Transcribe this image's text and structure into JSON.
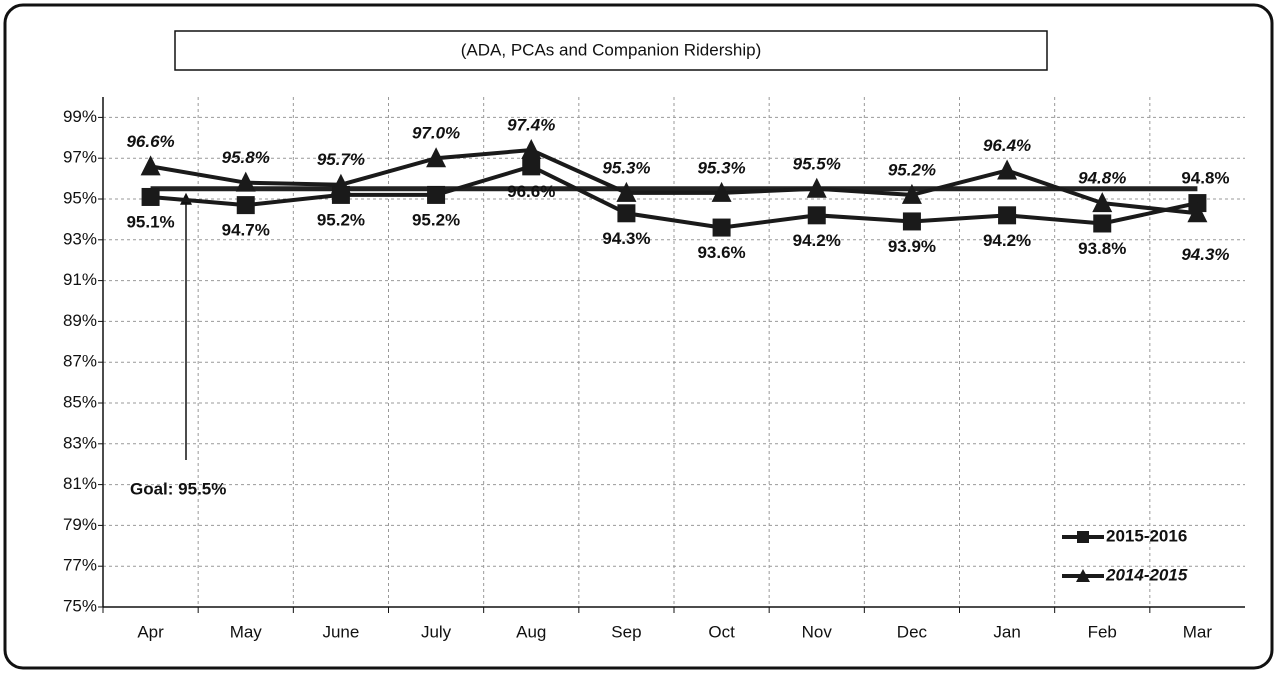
{
  "chart_data": {
    "type": "line",
    "title": "(ADA, PCAs and Companion Ridership)",
    "categories": [
      "Apr",
      "May",
      "June",
      "July",
      "Aug",
      "Sep",
      "Oct",
      "Nov",
      "Dec",
      "Jan",
      "Feb",
      "Mar"
    ],
    "series": [
      {
        "name": "2015-2016",
        "color": "#1a1a1a",
        "marker": "square",
        "values": [
          95.1,
          94.7,
          95.2,
          95.2,
          96.6,
          94.3,
          93.6,
          94.2,
          93.9,
          94.2,
          93.8,
          94.8
        ],
        "value_labels": [
          "95.1%",
          "94.7%",
          "95.2%",
          "95.2%",
          "96.6%",
          "94.3%",
          "93.6%",
          "94.2%",
          "93.9%",
          "94.2%",
          "93.8%",
          "94.8%"
        ]
      },
      {
        "name": "2014-2015",
        "color": "#1a1a1a",
        "marker": "triangle",
        "values": [
          96.6,
          95.8,
          95.7,
          97.0,
          97.4,
          95.3,
          95.3,
          95.5,
          95.2,
          96.4,
          94.8,
          94.3
        ],
        "value_labels": [
          "96.6%",
          "95.8%",
          "95.7%",
          "97.0%",
          "97.4%",
          "95.3%",
          "95.3%",
          "95.5%",
          "95.2%",
          "96.4%",
          "94.8%",
          "94.3%"
        ]
      }
    ],
    "goal": {
      "value": 95.5,
      "label": "Goal: 95.5%"
    },
    "ylim": [
      75,
      100
    ],
    "yticks": [
      {
        "value": 75,
        "label": "75%"
      },
      {
        "value": 77,
        "label": "77%"
      },
      {
        "value": 79,
        "label": "79%"
      },
      {
        "value": 81,
        "label": "81%"
      },
      {
        "value": 83,
        "label": "83%"
      },
      {
        "value": 85,
        "label": "85%"
      },
      {
        "value": 87,
        "label": "87%"
      },
      {
        "value": 89,
        "label": "89%"
      },
      {
        "value": 91,
        "label": "91%"
      },
      {
        "value": 93,
        "label": "93%"
      },
      {
        "value": 95,
        "label": "95%"
      },
      {
        "value": 97,
        "label": "97%"
      },
      {
        "value": 99,
        "label": "99%"
      }
    ],
    "grid": true,
    "legend": "lower right"
  }
}
